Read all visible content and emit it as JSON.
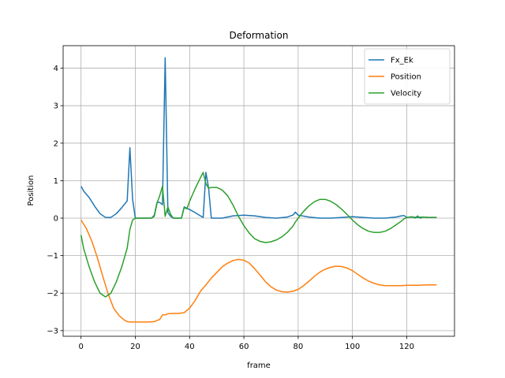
{
  "chart_data": {
    "type": "line",
    "title": "Deformation",
    "xlabel": "frame",
    "ylabel": "Position",
    "xlim": [
      -6.6,
      137.6
    ],
    "ylim": [
      -3.15,
      4.6
    ],
    "xticks": [
      0,
      20,
      40,
      60,
      80,
      100,
      120
    ],
    "yticks": [
      -3,
      -2,
      -1,
      0,
      1,
      2,
      3,
      4
    ],
    "grid": true,
    "legend_position": "top-right",
    "series": [
      {
        "name": "Fx_Ek",
        "color": "#1f77b4",
        "points": [
          [
            0,
            0.85
          ],
          [
            1,
            0.72
          ],
          [
            3,
            0.55
          ],
          [
            5,
            0.32
          ],
          [
            7,
            0.12
          ],
          [
            9,
            0.02
          ],
          [
            11,
            0.02
          ],
          [
            13,
            0.12
          ],
          [
            15,
            0.28
          ],
          [
            17,
            0.46
          ],
          [
            18,
            1.88
          ],
          [
            19,
            0.5
          ],
          [
            20,
            0.0
          ],
          [
            22,
            0.0
          ],
          [
            26,
            0.0
          ],
          [
            27,
            0.08
          ],
          [
            28,
            0.42
          ],
          [
            29,
            0.42
          ],
          [
            30,
            0.36
          ],
          [
            31,
            4.28
          ],
          [
            32,
            0.15
          ],
          [
            33,
            0.05
          ],
          [
            34,
            0.0
          ],
          [
            37,
            0.0
          ],
          [
            38,
            0.3
          ],
          [
            40,
            0.23
          ],
          [
            42,
            0.15
          ],
          [
            44,
            0.06
          ],
          [
            45,
            0.02
          ],
          [
            46,
            1.22
          ],
          [
            47,
            0.8
          ],
          [
            48,
            0.0
          ],
          [
            52,
            0.0
          ],
          [
            56,
            0.06
          ],
          [
            60,
            0.08
          ],
          [
            64,
            0.06
          ],
          [
            68,
            0.02
          ],
          [
            72,
            0.0
          ],
          [
            76,
            0.03
          ],
          [
            78,
            0.08
          ],
          [
            79,
            0.16
          ],
          [
            80,
            0.08
          ],
          [
            84,
            0.03
          ],
          [
            88,
            0.0
          ],
          [
            92,
            0.0
          ],
          [
            96,
            0.02
          ],
          [
            100,
            0.04
          ],
          [
            104,
            0.02
          ],
          [
            108,
            0.0
          ],
          [
            112,
            0.0
          ],
          [
            116,
            0.03
          ],
          [
            118,
            0.06
          ],
          [
            119,
            0.07
          ],
          [
            120,
            0.02
          ],
          [
            122,
            0.03
          ],
          [
            124,
            0.02
          ],
          [
            126,
            0.03
          ],
          [
            128,
            0.02
          ],
          [
            131,
            0.02
          ]
        ]
      },
      {
        "name": "Position",
        "color": "#ff7f0e",
        "points": [
          [
            0,
            -0.05
          ],
          [
            2,
            -0.28
          ],
          [
            4,
            -0.62
          ],
          [
            6,
            -1.05
          ],
          [
            8,
            -1.55
          ],
          [
            10,
            -2.02
          ],
          [
            12,
            -2.4
          ],
          [
            14,
            -2.6
          ],
          [
            16,
            -2.72
          ],
          [
            17,
            -2.76
          ],
          [
            18,
            -2.77
          ],
          [
            20,
            -2.77
          ],
          [
            25,
            -2.77
          ],
          [
            27,
            -2.76
          ],
          [
            29,
            -2.7
          ],
          [
            30,
            -2.58
          ],
          [
            31,
            -2.58
          ],
          [
            32,
            -2.55
          ],
          [
            34,
            -2.54
          ],
          [
            36,
            -2.54
          ],
          [
            38,
            -2.52
          ],
          [
            40,
            -2.4
          ],
          [
            42,
            -2.2
          ],
          [
            44,
            -1.95
          ],
          [
            46,
            -1.78
          ],
          [
            48,
            -1.6
          ],
          [
            50,
            -1.45
          ],
          [
            52,
            -1.3
          ],
          [
            54,
            -1.2
          ],
          [
            56,
            -1.13
          ],
          [
            58,
            -1.1
          ],
          [
            60,
            -1.12
          ],
          [
            62,
            -1.2
          ],
          [
            64,
            -1.35
          ],
          [
            66,
            -1.52
          ],
          [
            68,
            -1.7
          ],
          [
            70,
            -1.83
          ],
          [
            72,
            -1.92
          ],
          [
            74,
            -1.96
          ],
          [
            76,
            -1.97
          ],
          [
            78,
            -1.95
          ],
          [
            80,
            -1.9
          ],
          [
            82,
            -1.8
          ],
          [
            84,
            -1.68
          ],
          [
            86,
            -1.55
          ],
          [
            88,
            -1.44
          ],
          [
            90,
            -1.36
          ],
          [
            92,
            -1.31
          ],
          [
            94,
            -1.28
          ],
          [
            96,
            -1.29
          ],
          [
            98,
            -1.33
          ],
          [
            100,
            -1.4
          ],
          [
            102,
            -1.5
          ],
          [
            104,
            -1.6
          ],
          [
            106,
            -1.68
          ],
          [
            108,
            -1.74
          ],
          [
            110,
            -1.78
          ],
          [
            112,
            -1.8
          ],
          [
            114,
            -1.8
          ],
          [
            116,
            -1.8
          ],
          [
            118,
            -1.8
          ],
          [
            120,
            -1.79
          ],
          [
            124,
            -1.79
          ],
          [
            128,
            -1.78
          ],
          [
            131,
            -1.78
          ]
        ]
      },
      {
        "name": "Velocity",
        "color": "#2ca02c",
        "points": [
          [
            0,
            -0.45
          ],
          [
            1,
            -0.82
          ],
          [
            3,
            -1.3
          ],
          [
            5,
            -1.7
          ],
          [
            7,
            -2.0
          ],
          [
            9,
            -2.1
          ],
          [
            11,
            -2.0
          ],
          [
            13,
            -1.7
          ],
          [
            15,
            -1.3
          ],
          [
            17,
            -0.8
          ],
          [
            18,
            -0.3
          ],
          [
            19,
            -0.05
          ],
          [
            20,
            0.0
          ],
          [
            22,
            0.0
          ],
          [
            26,
            0.0
          ],
          [
            27,
            0.05
          ],
          [
            28,
            0.4
          ],
          [
            29,
            0.6
          ],
          [
            30,
            0.85
          ],
          [
            31,
            0.05
          ],
          [
            32,
            0.3
          ],
          [
            33,
            0.1
          ],
          [
            34,
            0.0
          ],
          [
            37,
            0.0
          ],
          [
            38,
            0.28
          ],
          [
            39,
            0.25
          ],
          [
            40,
            0.45
          ],
          [
            42,
            0.78
          ],
          [
            44,
            1.08
          ],
          [
            45,
            1.22
          ],
          [
            46,
            0.92
          ],
          [
            47,
            0.8
          ],
          [
            48,
            0.82
          ],
          [
            50,
            0.82
          ],
          [
            52,
            0.75
          ],
          [
            54,
            0.6
          ],
          [
            56,
            0.35
          ],
          [
            58,
            0.05
          ],
          [
            60,
            -0.2
          ],
          [
            62,
            -0.4
          ],
          [
            64,
            -0.55
          ],
          [
            66,
            -0.62
          ],
          [
            68,
            -0.65
          ],
          [
            70,
            -0.63
          ],
          [
            72,
            -0.58
          ],
          [
            74,
            -0.5
          ],
          [
            76,
            -0.38
          ],
          [
            78,
            -0.22
          ],
          [
            79,
            -0.1
          ],
          [
            80,
            0.0
          ],
          [
            82,
            0.18
          ],
          [
            84,
            0.33
          ],
          [
            86,
            0.44
          ],
          [
            88,
            0.5
          ],
          [
            90,
            0.5
          ],
          [
            92,
            0.45
          ],
          [
            94,
            0.36
          ],
          [
            96,
            0.24
          ],
          [
            98,
            0.1
          ],
          [
            100,
            -0.05
          ],
          [
            102,
            -0.18
          ],
          [
            104,
            -0.28
          ],
          [
            106,
            -0.35
          ],
          [
            108,
            -0.38
          ],
          [
            110,
            -0.38
          ],
          [
            112,
            -0.35
          ],
          [
            114,
            -0.28
          ],
          [
            116,
            -0.18
          ],
          [
            118,
            -0.08
          ],
          [
            119,
            -0.02
          ],
          [
            120,
            0.02
          ],
          [
            122,
            0.04
          ],
          [
            123,
            0.0
          ],
          [
            124,
            0.06
          ],
          [
            125,
            0.0
          ],
          [
            126,
            0.03
          ],
          [
            128,
            0.02
          ],
          [
            131,
            0.02
          ]
        ]
      }
    ]
  }
}
